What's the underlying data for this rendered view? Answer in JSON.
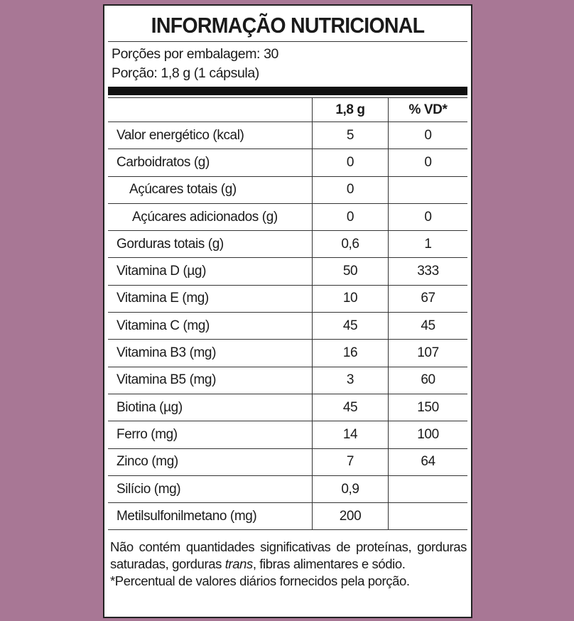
{
  "header": {
    "title": "INFORMAÇÃO NUTRICIONAL",
    "servings_per_package": "Porções por embalagem: 30",
    "serving_size": "Porção: 1,8 g (1 cápsula)"
  },
  "table": {
    "columns": [
      "1,8 g",
      "% VD*"
    ],
    "rows": [
      [
        "Valor energético (kcal)",
        "5",
        "0"
      ],
      [
        "Carboidratos (g)",
        "0",
        "0"
      ],
      [
        "Açúcares totais (g)",
        "0",
        null
      ],
      [
        "Açúcares adicionados (g)",
        "0",
        "0"
      ],
      [
        "Gorduras totais (g)",
        "0,6",
        "1"
      ],
      [
        "Vitamina D (µg)",
        "50",
        "333"
      ],
      [
        "Vitamina E (mg)",
        "10",
        "67"
      ],
      [
        "Vitamina C (mg)",
        "45",
        "45"
      ],
      [
        "Vitamina B3 (mg)",
        "16",
        "107"
      ],
      [
        "Vitamina B5 (mg)",
        "3",
        "60"
      ],
      [
        "Biotina (µg)",
        "45",
        "150"
      ],
      [
        "Ferro (mg)",
        "14",
        "100"
      ],
      [
        "Zinco (mg)",
        "7",
        "64"
      ],
      [
        "Silício (mg)",
        "0,9",
        null
      ],
      [
        "Metilsulfonilmetano (mg)",
        "200",
        null
      ]
    ]
  },
  "footnotes": {
    "note_parts": [
      "Não contém quantidades significativas de proteínas, gorduras saturadas, gorduras ",
      "trans",
      ", fibras alimentares e sódio."
    ],
    "vd_note": "*Percentual de valores diários fornecidos pela porção."
  }
}
